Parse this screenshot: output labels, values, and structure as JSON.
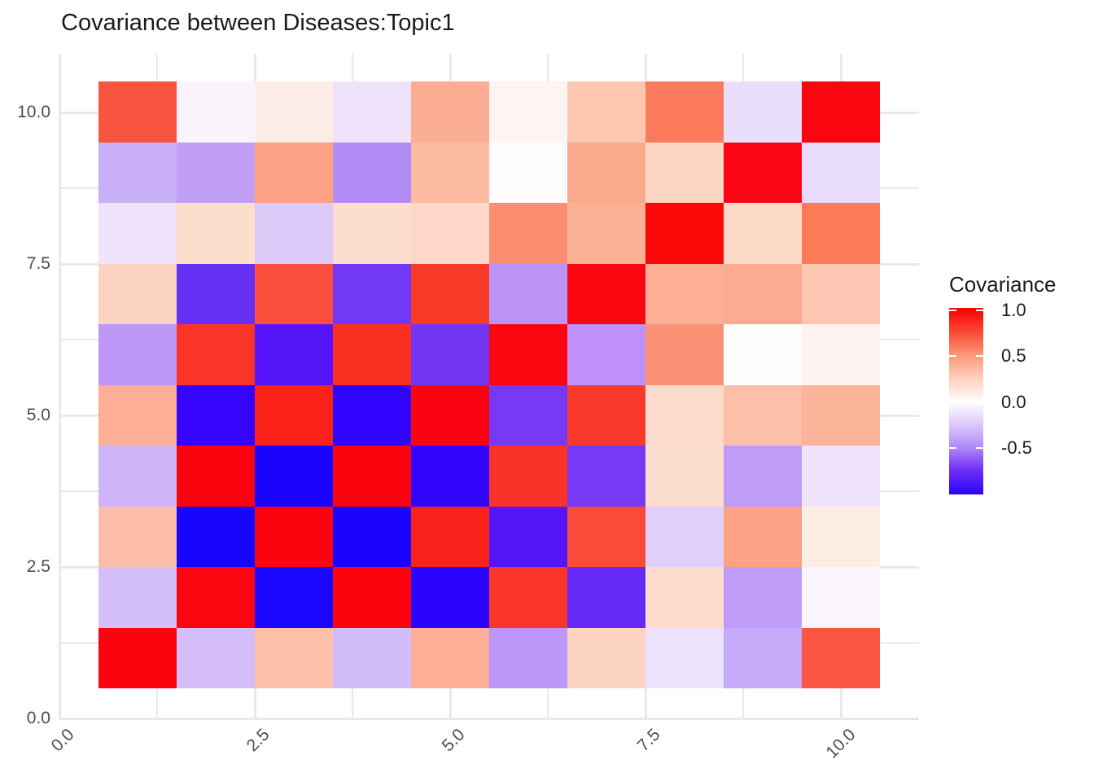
{
  "title": "Covariance between Diseases:Topic1",
  "legend": {
    "title": "Covariance",
    "tick_labels": [
      "1.0",
      "0.5",
      "0.0",
      "-0.5"
    ],
    "tick_values": [
      1.0,
      0.5,
      0.0,
      -0.5
    ]
  },
  "colors": {
    "high": "#F90508",
    "mid": "#FFFFFF",
    "low": "#2B05FC",
    "gridline": "#E9E9E9",
    "axis_text": "#4D4D4D",
    "title_text": "#1A1A1A",
    "background": "#FFFFFF"
  },
  "chart_data": {
    "type": "heatmap",
    "title": "Covariance between Diseases:Topic1",
    "xlabel": "",
    "ylabel": "",
    "legend_title": "Covariance",
    "x": [
      1,
      2,
      3,
      4,
      5,
      6,
      7,
      8,
      9,
      10
    ],
    "y": [
      1,
      2,
      3,
      4,
      5,
      6,
      7,
      8,
      9,
      10
    ],
    "xticks": {
      "labels": [
        "0.0",
        "2.5",
        "5.0",
        "7.5",
        "10.0"
      ],
      "values": [
        0,
        2.5,
        5,
        7.5,
        10
      ]
    },
    "yticks": {
      "labels": [
        "0.0",
        "2.5",
        "5.0",
        "7.5",
        "10.0"
      ],
      "values": [
        0,
        2.5,
        5,
        7.5,
        10
      ]
    },
    "xlim": [
      0,
      11
    ],
    "ylim": [
      0,
      10.97
    ],
    "x_gridlines": [
      0,
      1.25,
      2.5,
      3.75,
      5,
      6.25,
      7.5,
      8.75,
      10
    ],
    "y_gridlines": [
      0,
      1.25,
      2.5,
      3.75,
      5,
      6.25,
      7.5,
      8.75,
      10
    ],
    "grid": true,
    "legend_position": "right",
    "row_order_top_to_bottom": [
      10,
      9,
      8,
      7,
      6,
      5,
      4,
      3,
      2,
      1
    ],
    "values": [
      [
        0.72,
        -0.03,
        0.07,
        -0.1,
        0.4,
        0.04,
        0.27,
        0.6,
        -0.12,
        0.97
      ],
      [
        -0.33,
        -0.4,
        0.45,
        -0.48,
        0.32,
        0.0,
        0.42,
        0.18,
        0.97,
        -0.13
      ],
      [
        -0.1,
        0.17,
        -0.22,
        0.15,
        0.18,
        0.53,
        0.37,
        0.97,
        0.17,
        0.6
      ],
      [
        0.2,
        -0.77,
        0.73,
        -0.73,
        0.8,
        -0.42,
        0.97,
        0.4,
        0.42,
        0.27
      ],
      [
        -0.42,
        0.83,
        -0.85,
        0.85,
        -0.73,
        0.97,
        -0.43,
        0.52,
        0.0,
        0.05
      ],
      [
        0.38,
        -0.95,
        0.88,
        -0.95,
        0.97,
        -0.72,
        0.8,
        0.16,
        0.3,
        0.35
      ],
      [
        -0.3,
        0.95,
        -1.0,
        0.95,
        -0.95,
        0.83,
        -0.72,
        0.16,
        -0.4,
        -0.08
      ],
      [
        0.32,
        -1.0,
        0.95,
        -1.0,
        0.88,
        -0.85,
        0.75,
        -0.18,
        0.45,
        0.08
      ],
      [
        -0.27,
        0.95,
        -1.0,
        0.95,
        -0.97,
        0.82,
        -0.78,
        0.16,
        -0.4,
        -0.03
      ],
      [
        0.95,
        -0.27,
        0.3,
        -0.28,
        0.38,
        -0.43,
        0.2,
        -0.1,
        -0.36,
        0.72
      ]
    ],
    "cell_colors": [
      [
        "#F85540",
        "#F9F4FC",
        "#FDEDE6",
        "#EFE3FB",
        "#FCAE94",
        "#FEF4F2",
        "#FCC6B0",
        "#FB7A5C",
        "#EADFFA",
        "#FB0510"
      ],
      [
        "#C9AFF5",
        "#C09FF5",
        "#FCA183",
        "#B28CF6",
        "#FCBBA1",
        "#FEFCFE",
        "#FBA98D",
        "#FDD7C6",
        "#FA0511",
        "#E7DCFA"
      ],
      [
        "#EFE4FB",
        "#FCDECC",
        "#DCC9F8",
        "#FDDDD0",
        "#FDD7C8",
        "#FB8E71",
        "#FCB195",
        "#FB0808",
        "#FDD9C8",
        "#FB7B59"
      ],
      [
        "#FCD2C2",
        "#6630F2",
        "#FA4F3C",
        "#7338F3",
        "#FA3A28",
        "#BE93F8",
        "#FB0511",
        "#FCAF94",
        "#FCAB90",
        "#FDC6B3"
      ],
      [
        "#BD97F7",
        "#FA3427",
        "#5614F8",
        "#FA2F22",
        "#7336F4",
        "#FB0511",
        "#BE90F8",
        "#FB9175",
        "#FEFDFE",
        "#FEF3F1"
      ],
      [
        "#FCAE96",
        "#3404FB",
        "#FB2319",
        "#3003FC",
        "#FB0310",
        "#7639F4",
        "#FA3A2C",
        "#FDDCCE",
        "#FCC0A8",
        "#FCB49A"
      ],
      [
        "#D0B4F9",
        "#FB0410",
        "#1B04FD",
        "#FB0410",
        "#3104FC",
        "#FA3228",
        "#7739F4",
        "#FDDCD0",
        "#BF9CF8",
        "#F0E3FB"
      ],
      [
        "#FCBEA8",
        "#1805FD",
        "#FB0410",
        "#1A04FD",
        "#FA231B",
        "#5513F8",
        "#FA4A38",
        "#E0CFFA",
        "#FCA184",
        "#FDEDE4"
      ],
      [
        "#D5BFF9",
        "#FB0511",
        "#1A05FD",
        "#FB0410",
        "#2A04FC",
        "#FA3628",
        "#6629F5",
        "#FDDCCC",
        "#C09DF8",
        "#FAF5FD"
      ],
      [
        "#FB0410",
        "#D4BDF9",
        "#FCBFA7",
        "#D2BBF9",
        "#FCAE96",
        "#BC96F8",
        "#FCD2C2",
        "#EDE2FB",
        "#C6A9F8",
        "#FA5540"
      ]
    ],
    "colorbar": {
      "range_top": 1.03,
      "range_bottom": -1.01,
      "stops": [
        {
          "v": 1.0,
          "color": "#F90508"
        },
        {
          "v": 0.75,
          "color": "#FA4F38"
        },
        {
          "v": 0.5,
          "color": "#FC9B7E"
        },
        {
          "v": 0.25,
          "color": "#FDD2C0"
        },
        {
          "v": 0.0,
          "color": "#FFFFFF"
        },
        {
          "v": -0.25,
          "color": "#DCC8F9"
        },
        {
          "v": -0.5,
          "color": "#AF88F6"
        },
        {
          "v": -0.75,
          "color": "#6E2DF3"
        },
        {
          "v": -1.0,
          "color": "#2B05FC"
        }
      ]
    }
  }
}
